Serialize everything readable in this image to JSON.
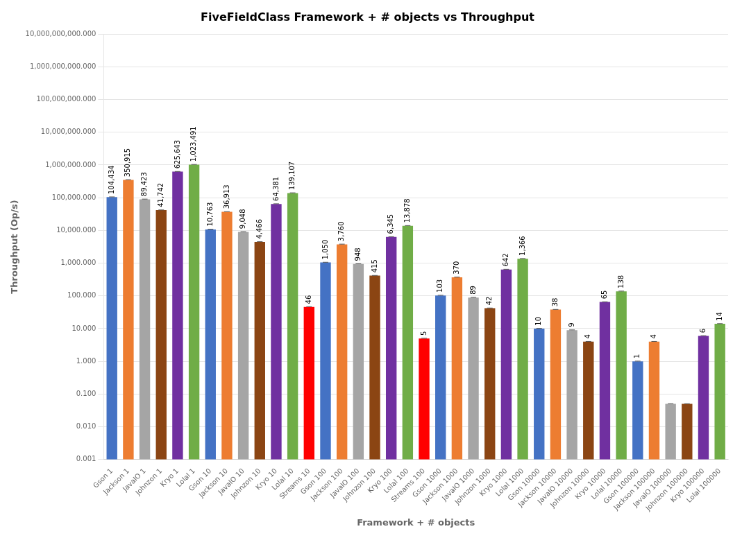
{
  "chart_data": {
    "type": "bar",
    "title": "FiveFieldClass Framework + # objects vs Throughput",
    "xlabel": "Framework + # objects",
    "ylabel": "Throughput (Op/s)",
    "categories": [
      "Gson 1",
      "Jackson 1",
      "JavaIO 1",
      "Johnzon 1",
      "Kryo 1",
      "Lolal 1",
      "Gson 10",
      "Jackson 10",
      "JavaIO 10",
      "Johnzon 10",
      "Kryo 10",
      "Lolal 10",
      "Streams 10",
      "Gson 100",
      "Jackson 100",
      "JavaIO 100",
      "Johnzon 100",
      "Kryo 100",
      "Lolal 100",
      "Streams 100",
      "Gson 1000",
      "Jackson 1000",
      "JavaIO 1000",
      "Johnzon 1000",
      "Kryo 1000",
      "Lolal 1000",
      "Gson 10000",
      "Jackson 10000",
      "JavaIO 10000",
      "Johnzon 10000",
      "Kryo 10000",
      "Lolal 10000",
      "Gson 100000",
      "Jackson 100000",
      "JavaIO 100000",
      "Johnzon 100000",
      "Kryo 100000",
      "Lolal 100000"
    ],
    "values": [
      104434,
      350915,
      89423,
      41742,
      625643,
      1023491,
      10763,
      36913,
      9048,
      4466,
      64381,
      139107,
      46,
      1050,
      3760,
      948,
      415,
      6345,
      13878,
      5,
      103,
      370,
      89,
      42,
      642,
      1366,
      10,
      38,
      9,
      4,
      65,
      138,
      1,
      4,
      0.05,
      0.05,
      6,
      14
    ],
    "value_labels": [
      "104,434",
      "350,915",
      "89,423",
      "41,742",
      "625,643",
      "1,023,491",
      "10,763",
      "36,913",
      "9,048",
      "4,466",
      "64,381",
      "139,107",
      "46",
      "1,050",
      "3,760",
      "948",
      "415",
      "6,345",
      "13,878",
      "5",
      "103",
      "370",
      "89",
      "42",
      "642",
      "1,366",
      "10",
      "38",
      "9",
      "4",
      "65",
      "138",
      "1",
      "4",
      null,
      null,
      "6",
      "14"
    ],
    "error_plus": [
      1566.51,
      5263.725,
      1341.345,
      626.13,
      9384.645,
      15352.365,
      161.445,
      553.695,
      135.72,
      66.99,
      965.715,
      2086.605,
      0.69,
      15.75,
      56.4,
      14.22,
      6.225,
      95.175,
      208.17,
      0.075,
      1.545,
      5.55,
      1.335,
      0.63,
      9.63,
      20.49,
      0.15,
      0.57,
      0.135,
      0.06,
      0.975,
      2.07,
      0.015,
      0.06,
      0.00075,
      0.00075,
      0.09,
      0.21
    ],
    "colors": [
      "#4472C4",
      "#ED7D31",
      "#A5A5A5",
      "#8B4513",
      "#7030A0",
      "#70AD47",
      "#4472C4",
      "#ED7D31",
      "#A5A5A5",
      "#8B4513",
      "#7030A0",
      "#70AD47",
      "#FF0000",
      "#4472C4",
      "#ED7D31",
      "#A5A5A5",
      "#8B4513",
      "#7030A0",
      "#70AD47",
      "#FF0000",
      "#4472C4",
      "#ED7D31",
      "#A5A5A5",
      "#8B4513",
      "#7030A0",
      "#70AD47",
      "#4472C4",
      "#ED7D31",
      "#A5A5A5",
      "#8B4513",
      "#7030A0",
      "#70AD47",
      "#4472C4",
      "#ED7D31",
      "#A5A5A5",
      "#8B4513",
      "#7030A0",
      "#70AD47"
    ],
    "log": "y",
    "ylim": [
      0.001,
      10000000000
    ],
    "yticks": [
      0.001,
      {
        "value": 0.01,
        "label": "0.010"
      },
      {
        "value": 0.1,
        "label": "0.100"
      },
      {
        "value": 1,
        "label": "1.000"
      },
      {
        "value": 10,
        "label": "10.000"
      },
      {
        "value": 100,
        "label": "100.000"
      },
      {
        "value": 1000,
        "label": "1,000.000"
      },
      {
        "value": 10000,
        "label": "10,000.000"
      },
      {
        "value": 100000,
        "label": "100,000.000"
      },
      {
        "value": 1000000,
        "label": "1,000,000.000"
      },
      {
        "value": 10000000,
        "label": "10,000,000.000"
      },
      {
        "value": 100000000,
        "label": "100,000,000.000"
      },
      {
        "value": 1000000000,
        "label": "1,000,000,000.000"
      },
      {
        "value": 10000000000,
        "label": "10,000,000,000.000"
      }
    ],
    "grid": true,
    "data_labels": true
  }
}
